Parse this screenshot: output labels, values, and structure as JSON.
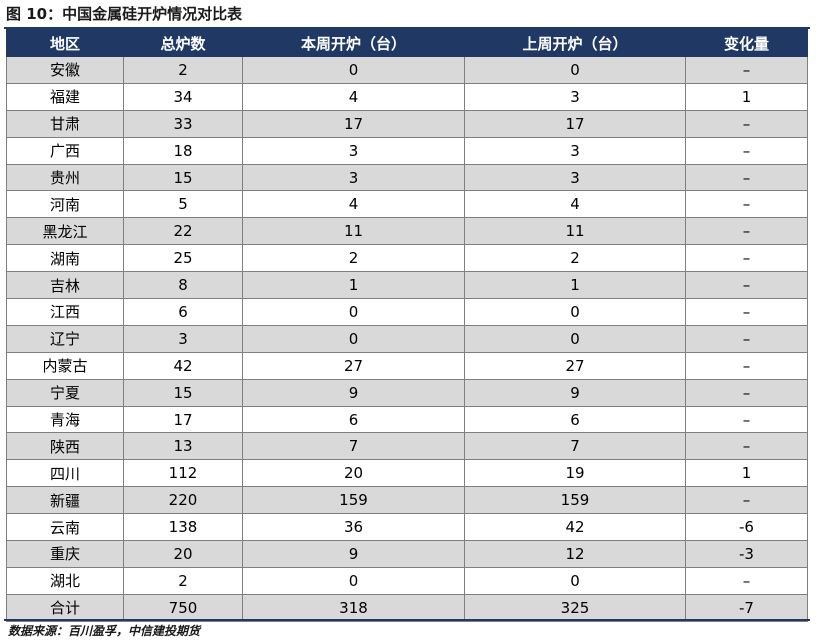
{
  "title": "图 10：中国金属硅开炉情况对比表",
  "columns": [
    "地区",
    "总炉数",
    "本周开炉（台）",
    "上周开炉（台）",
    "变化量"
  ],
  "rows": [
    [
      "安徽",
      "2",
      "0",
      "0",
      "–"
    ],
    [
      "福建",
      "34",
      "4",
      "3",
      "1"
    ],
    [
      "甘肃",
      "33",
      "17",
      "17",
      "–"
    ],
    [
      "广西",
      "18",
      "3",
      "3",
      "–"
    ],
    [
      "贵州",
      "15",
      "3",
      "3",
      "–"
    ],
    [
      "河南",
      "5",
      "4",
      "4",
      "–"
    ],
    [
      "黑龙江",
      "22",
      "11",
      "11",
      "–"
    ],
    [
      "湖南",
      "25",
      "2",
      "2",
      "–"
    ],
    [
      "吉林",
      "8",
      "1",
      "1",
      "–"
    ],
    [
      "江西",
      "6",
      "0",
      "0",
      "–"
    ],
    [
      "辽宁",
      "3",
      "0",
      "0",
      "–"
    ],
    [
      "内蒙古",
      "42",
      "27",
      "27",
      "–"
    ],
    [
      "宁夏",
      "15",
      "9",
      "9",
      "–"
    ],
    [
      "青海",
      "17",
      "6",
      "6",
      "–"
    ],
    [
      "陕西",
      "13",
      "7",
      "7",
      "–"
    ],
    [
      "四川",
      "112",
      "20",
      "19",
      "1"
    ],
    [
      "新疆",
      "220",
      "159",
      "159",
      "–"
    ],
    [
      "云南",
      "138",
      "36",
      "42",
      "-6"
    ],
    [
      "重庆",
      "20",
      "9",
      "12",
      "-3"
    ],
    [
      "湖北",
      "2",
      "0",
      "0",
      "–"
    ],
    [
      "合计",
      "750",
      "318",
      "325",
      "-7"
    ]
  ],
  "source": "数据来源：百川盈孚，中信建投期货",
  "colors": {
    "header_bg": "#1f3864",
    "header_text": "#ffffff",
    "stripe": "#d9d9d9"
  }
}
